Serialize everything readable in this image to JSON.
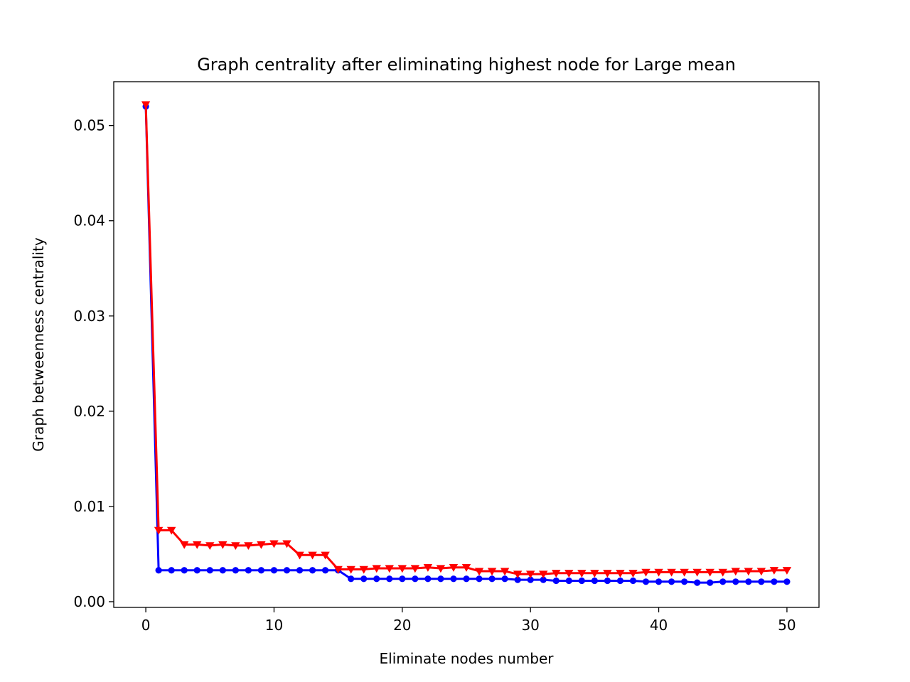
{
  "chart_data": {
    "type": "line",
    "title": "Graph centrality after eliminating highest node for Large mean",
    "xlabel": "Eliminate nodes number",
    "ylabel": "Graph betweenness centrality",
    "xlim": [
      -2.5,
      52.5
    ],
    "ylim": [
      -0.0006,
      0.0546
    ],
    "x_ticks": [
      0,
      10,
      20,
      30,
      40,
      50
    ],
    "x_tick_labels": [
      "0",
      "10",
      "20",
      "30",
      "40",
      "50"
    ],
    "y_ticks": [
      0.0,
      0.01,
      0.02,
      0.03,
      0.04,
      0.05
    ],
    "y_tick_labels": [
      "0.00",
      "0.01",
      "0.02",
      "0.03",
      "0.04",
      "0.05"
    ],
    "grid": false,
    "legend": null,
    "x": [
      0,
      1,
      2,
      3,
      4,
      5,
      6,
      7,
      8,
      9,
      10,
      11,
      12,
      13,
      14,
      15,
      16,
      17,
      18,
      19,
      20,
      21,
      22,
      23,
      24,
      25,
      26,
      27,
      28,
      29,
      30,
      31,
      32,
      33,
      34,
      35,
      36,
      37,
      38,
      39,
      40,
      41,
      42,
      43,
      44,
      45,
      46,
      47,
      48,
      49,
      50
    ],
    "series": [
      {
        "color": "#0000ff",
        "marker": "circle",
        "values": [
          0.052,
          0.0033,
          0.0033,
          0.0033,
          0.0033,
          0.0033,
          0.0033,
          0.0033,
          0.0033,
          0.0033,
          0.0033,
          0.0033,
          0.0033,
          0.0033,
          0.0033,
          0.0033,
          0.0024,
          0.0024,
          0.0024,
          0.0024,
          0.0024,
          0.0024,
          0.0024,
          0.0024,
          0.0024,
          0.0024,
          0.0024,
          0.0024,
          0.0024,
          0.0023,
          0.0023,
          0.0023,
          0.0022,
          0.0022,
          0.0022,
          0.0022,
          0.0022,
          0.0022,
          0.0022,
          0.0021,
          0.0021,
          0.0021,
          0.0021,
          0.002,
          0.002,
          0.0021,
          0.0021,
          0.0021,
          0.0021,
          0.0021,
          0.0021
        ]
      },
      {
        "color": "#ff0000",
        "marker": "triangle-down",
        "values": [
          0.0522,
          0.0075,
          0.0075,
          0.006,
          0.006,
          0.0059,
          0.006,
          0.0059,
          0.0059,
          0.006,
          0.0061,
          0.0061,
          0.0049,
          0.0049,
          0.0049,
          0.0034,
          0.0034,
          0.0034,
          0.0035,
          0.0035,
          0.0035,
          0.0035,
          0.0036,
          0.0035,
          0.0036,
          0.0036,
          0.0032,
          0.0032,
          0.0032,
          0.0029,
          0.0029,
          0.0029,
          0.003,
          0.003,
          0.003,
          0.003,
          0.003,
          0.003,
          0.003,
          0.0031,
          0.0031,
          0.0031,
          0.0031,
          0.0031,
          0.0031,
          0.0031,
          0.0032,
          0.0032,
          0.0032,
          0.0033,
          0.0033
        ]
      }
    ]
  }
}
